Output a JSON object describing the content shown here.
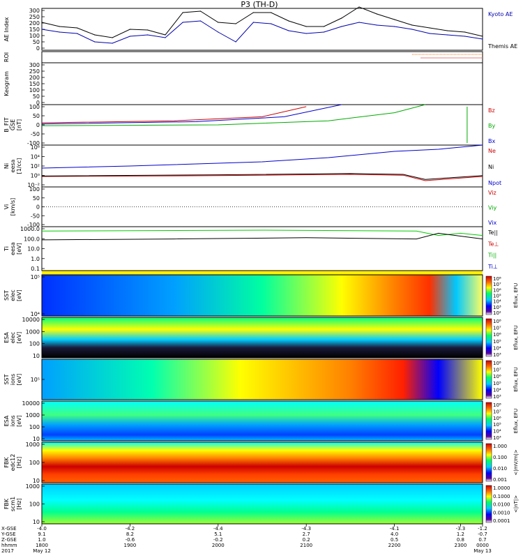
{
  "title": "P3 (TH-D)",
  "panels": [
    {
      "id": "ae",
      "ylabel": [
        "AE Index"
      ],
      "yticks": [
        "300",
        "250",
        "200",
        "150",
        "100",
        "50",
        "0"
      ],
      "legend": [
        {
          "text": "Kyoto AE",
          "color": "#0000aa"
        },
        {
          "text": "Themis AE",
          "color": "#000000"
        }
      ]
    },
    {
      "id": "roi",
      "ylabel": [
        "ROI"
      ],
      "yticks": [],
      "legend": []
    },
    {
      "id": "keogram",
      "ylabel": [
        "Keogram"
      ],
      "yticks": [
        "300",
        "250",
        "200",
        "150",
        "100",
        "50",
        "0"
      ],
      "legend": []
    },
    {
      "id": "bfit",
      "ylabel": [
        "B_FIT",
        "GSE",
        "[nT]"
      ],
      "yticks": [
        "100",
        "50",
        "0",
        "-50",
        "-100"
      ],
      "legend": [
        {
          "text": "Bz",
          "color": "#cc0000"
        },
        {
          "text": "By",
          "color": "#00aa00"
        },
        {
          "text": "Bx",
          "color": "#0000cc"
        }
      ]
    },
    {
      "id": "ni",
      "ylabel": [
        "Ni",
        "eesa",
        "[1/cc]"
      ],
      "yticks": [
        "10⁶",
        "10⁴",
        "10²",
        "10⁰",
        "10⁻²"
      ],
      "legend": [
        {
          "text": "Ne",
          "color": "#cc0000"
        },
        {
          "text": "Ni",
          "color": "#000000"
        },
        {
          "text": "Npot",
          "color": "#0000cc"
        }
      ]
    },
    {
      "id": "vi",
      "ylabel": [
        "Vi",
        "[km/s]"
      ],
      "yticks": [
        "100",
        "50",
        "0",
        "-50",
        "-100"
      ],
      "legend": [
        {
          "text": "Viz",
          "color": "#cc0000"
        },
        {
          "text": "Viy",
          "color": "#00aa00"
        },
        {
          "text": "Vix",
          "color": "#0000cc"
        }
      ]
    },
    {
      "id": "ti",
      "ylabel": [
        "Ti",
        "eesa",
        "[eV]"
      ],
      "yticks": [
        "1000.0",
        "100.0",
        "10.0",
        "1.0",
        "0.1"
      ],
      "legend": [
        {
          "text": "Te||",
          "color": "#000000"
        },
        {
          "text": "Te⊥",
          "color": "#cc0000"
        },
        {
          "text": "Ti||",
          "color": "#00aa00"
        },
        {
          "text": "Ti⊥",
          "color": "#0000cc"
        }
      ]
    },
    {
      "id": "sst_e",
      "ylabel": [
        "SST",
        "elec",
        "[eV]"
      ],
      "yticks": [
        "10⁵",
        "10⁴"
      ],
      "colorbar": [
        "10⁸",
        "10⁷",
        "10⁶",
        "10⁵",
        "10⁴",
        "10³",
        "10²"
      ],
      "cblabel": "Eflux, EFU"
    },
    {
      "id": "esa_e",
      "ylabel": [
        "ESA",
        "elec",
        "[eV]"
      ],
      "yticks": [
        "10000",
        "1000",
        "100",
        "10"
      ],
      "colorbar": [
        "10⁸",
        "10⁷",
        "10⁶",
        "10⁵",
        "10⁴",
        "10³"
      ],
      "cblabel": "Eflux, EFU"
    },
    {
      "id": "sst_i",
      "ylabel": [
        "SST",
        "ions",
        "[eV]"
      ],
      "yticks": [
        "10⁵"
      ],
      "colorbar": [
        "10⁸",
        "10⁷",
        "10⁶",
        "10⁵",
        "10⁴",
        "10³"
      ],
      "cblabel": "Eflux, EFU"
    },
    {
      "id": "esa_i",
      "ylabel": [
        "ESA",
        "ions",
        "[eV]"
      ],
      "yticks": [
        "10000",
        "1000",
        "100",
        "10"
      ],
      "colorbar": [
        "10⁸",
        "10⁷",
        "10⁶",
        "10⁵",
        "10⁴",
        "10³"
      ],
      "cblabel": "Eflux, EFU"
    },
    {
      "id": "fbk_e",
      "ylabel": [
        "FBK",
        "edc12",
        "[Hz]"
      ],
      "yticks": [
        "1000",
        "100",
        "10"
      ],
      "colorbar": [
        "1.000",
        "0.100",
        "0.010",
        "0.001"
      ],
      "cblabel": "<|mV/m|>"
    },
    {
      "id": "fbk_b",
      "ylabel": [
        "FBK",
        "scm1",
        "[Hz]"
      ],
      "yticks": [
        "1000",
        "100",
        "10"
      ],
      "colorbar": [
        "1.0000",
        "0.1000",
        "0.0100",
        "0.0010",
        "0.0001"
      ],
      "cblabel": "<|nT|>"
    }
  ],
  "x_axis": {
    "row_labels": [
      "X-GSE",
      "Y-GSE",
      "Z-GSE",
      "hhmm",
      "2017"
    ],
    "columns": [
      {
        "pos": 0.0,
        "values": [
          "-4.0",
          "9.1",
          "1.0",
          "1800",
          "May 12"
        ]
      },
      {
        "pos": 0.2,
        "values": [
          "-4.2",
          "8.2",
          "-0.6",
          "1900",
          ""
        ]
      },
      {
        "pos": 0.4,
        "values": [
          "-4.4",
          "5.1",
          "-0.2",
          "2000",
          ""
        ]
      },
      {
        "pos": 0.6,
        "values": [
          "-4.3",
          "2.7",
          "0.2",
          "2100",
          ""
        ]
      },
      {
        "pos": 0.8,
        "values": [
          "-4.1",
          "4.0",
          "0.5",
          "2200",
          ""
        ]
      },
      {
        "pos": 0.95,
        "values": [
          "-3.3",
          "1.2",
          "0.8",
          "2300",
          ""
        ]
      },
      {
        "pos": 1.0,
        "values": [
          "-1.2",
          "-0.7",
          "0.7",
          "0000",
          "May 13"
        ]
      }
    ]
  },
  "chart_data": {
    "type": "line",
    "title": "P3 (TH-D)",
    "time_range": [
      "1800",
      "0000"
    ],
    "series": [
      {
        "name": "Themis AE",
        "color": "#000000",
        "x": [
          0,
          0.04,
          0.08,
          0.12,
          0.16,
          0.2,
          0.24,
          0.28,
          0.32,
          0.36,
          0.4,
          0.44,
          0.48,
          0.52,
          0.56,
          0.6,
          0.64,
          0.68,
          0.72,
          0.76,
          0.8,
          0.84,
          0.88,
          0.92,
          0.96,
          1.0
        ],
        "y": [
          200,
          170,
          160,
          110,
          90,
          150,
          145,
          110,
          270,
          280,
          200,
          190,
          270,
          270,
          210,
          170,
          170,
          230,
          310,
          260,
          220,
          180,
          160,
          140,
          130,
          100
        ]
      },
      {
        "name": "Kyoto AE",
        "color": "#0000aa",
        "x": [
          0,
          0.04,
          0.08,
          0.12,
          0.16,
          0.2,
          0.24,
          0.28,
          0.32,
          0.36,
          0.4,
          0.44,
          0.48,
          0.52,
          0.56,
          0.6,
          0.64,
          0.68,
          0.72,
          0.76,
          0.8,
          0.84,
          0.88,
          0.92,
          0.96,
          1.0
        ],
        "y": [
          150,
          130,
          120,
          60,
          50,
          100,
          110,
          90,
          200,
          210,
          130,
          60,
          200,
          190,
          140,
          120,
          130,
          170,
          200,
          180,
          170,
          150,
          120,
          110,
          100,
          80
        ]
      }
    ]
  }
}
